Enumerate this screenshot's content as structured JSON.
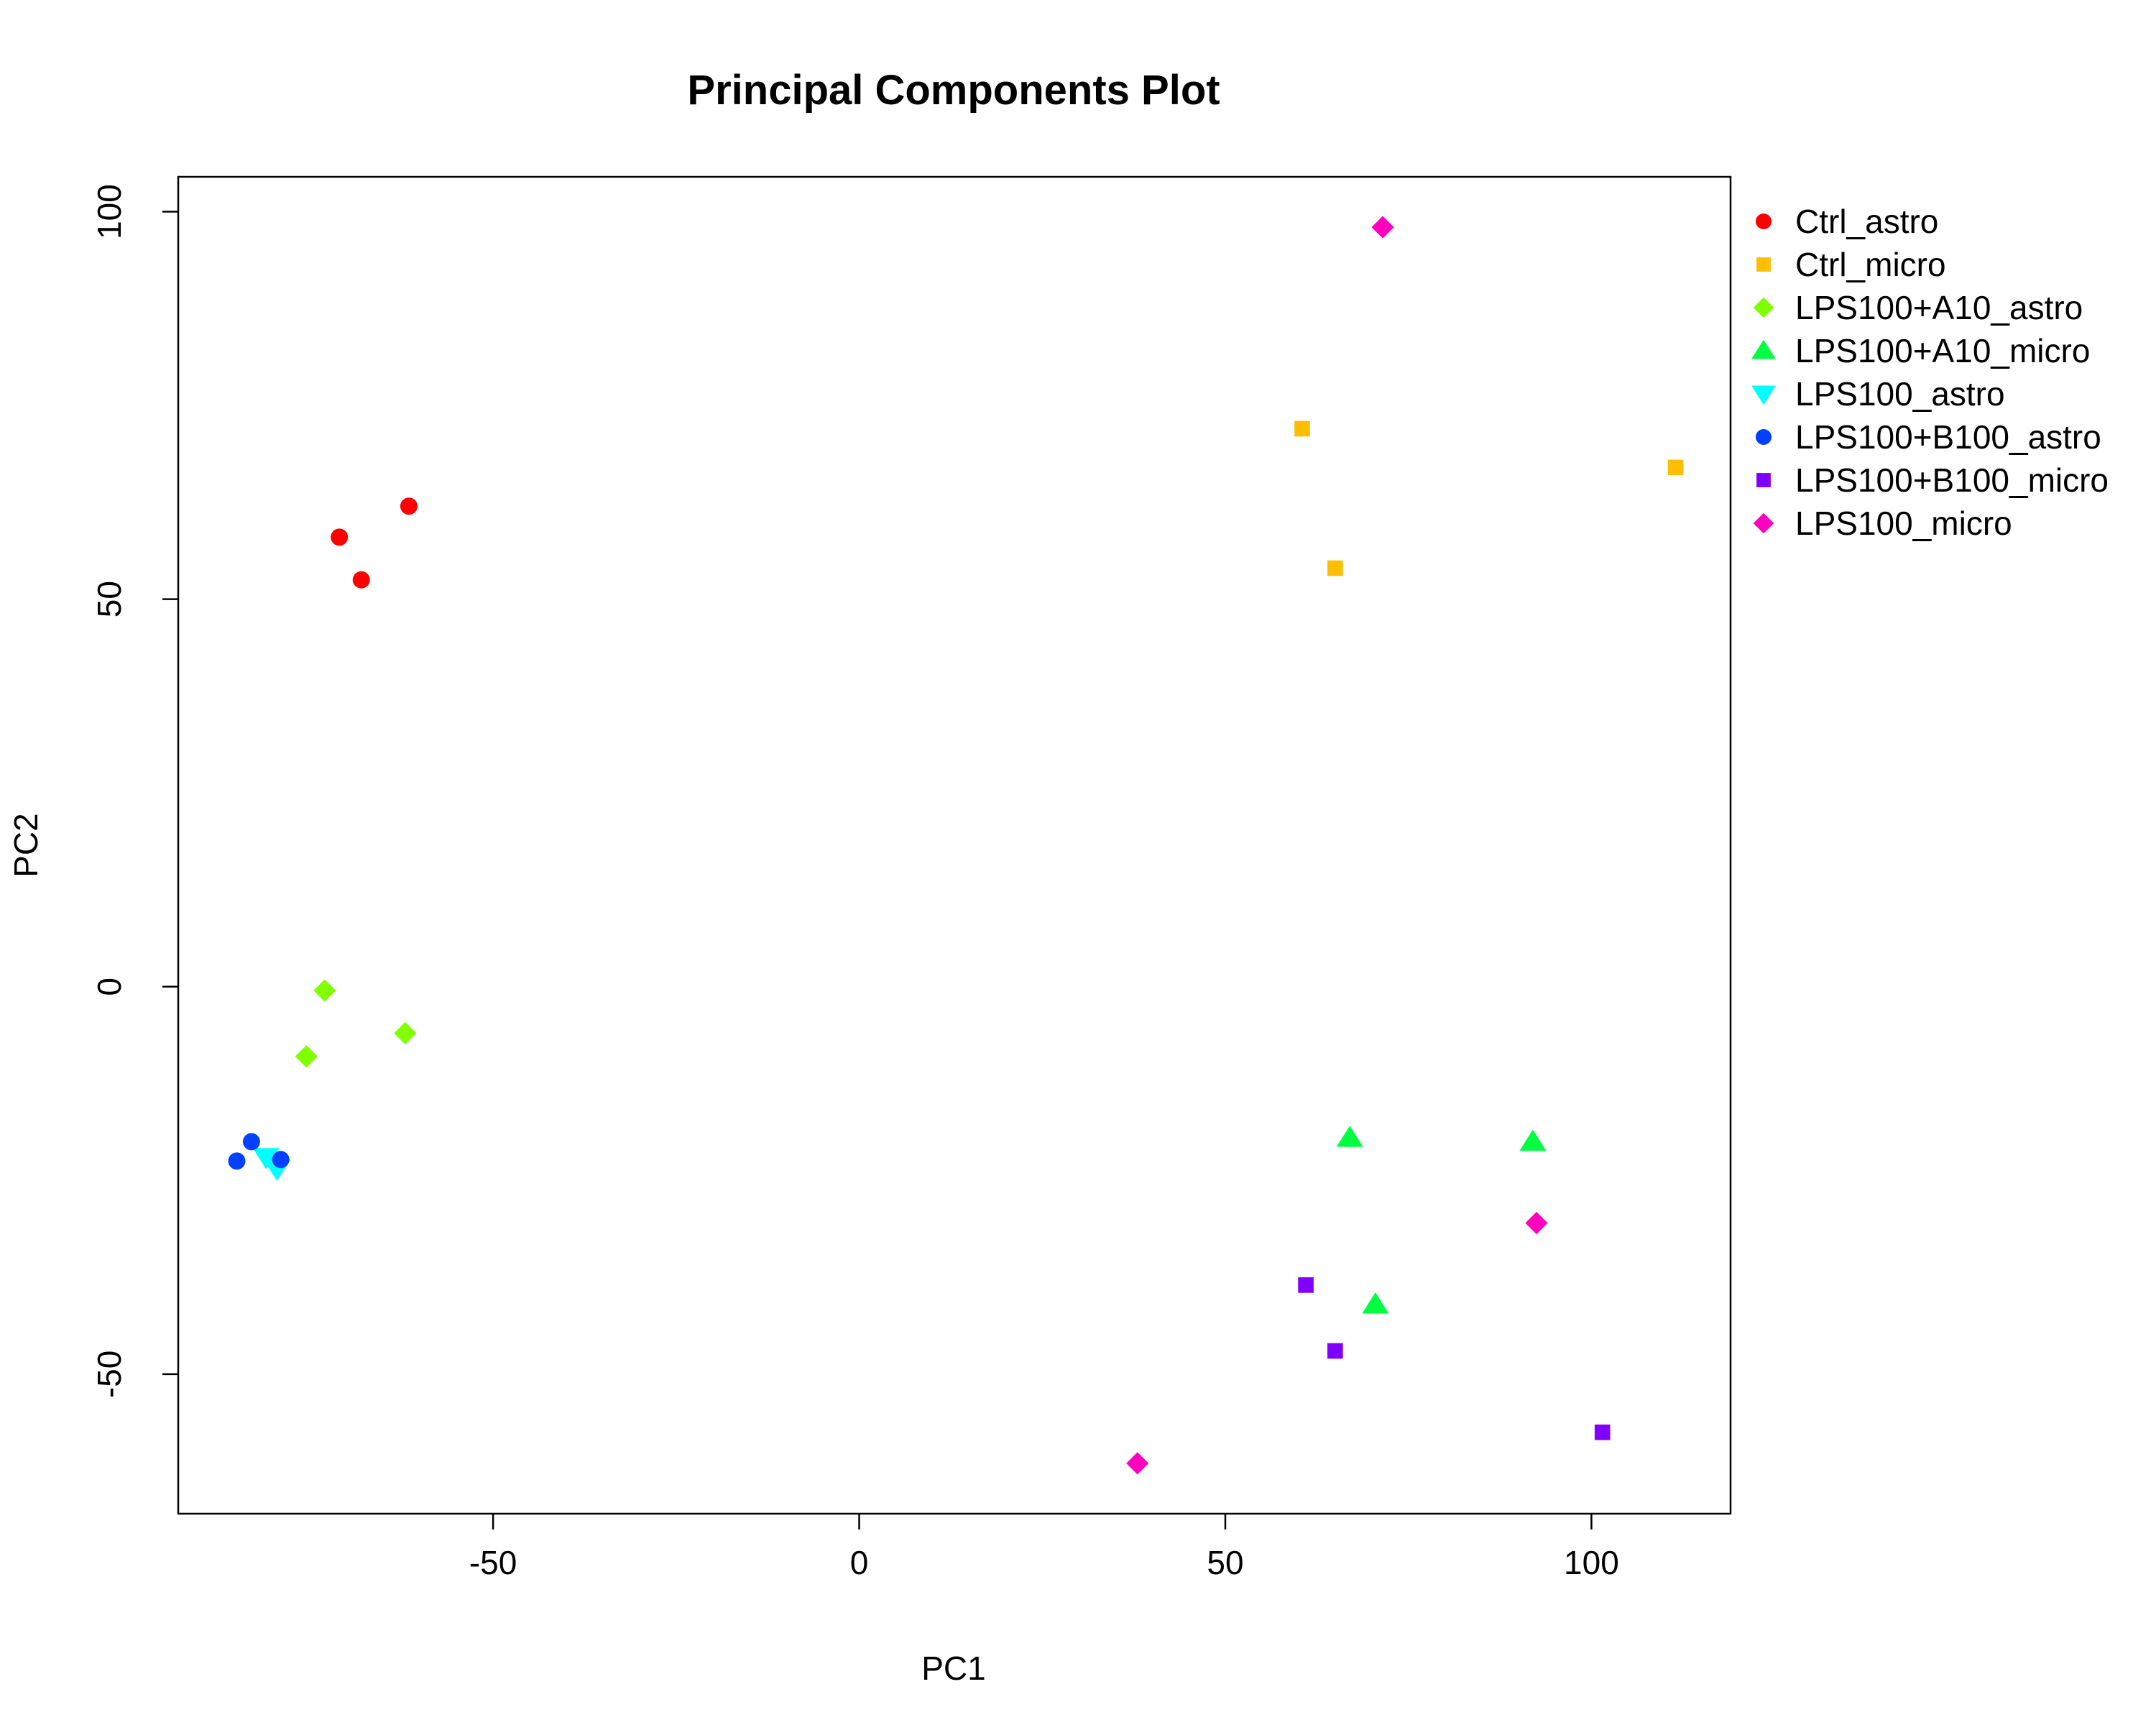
{
  "chart_data": {
    "type": "scatter",
    "title": "Principal Components Plot",
    "xlabel": "PC1",
    "ylabel": "PC2",
    "xlim": [
      -93,
      119
    ],
    "ylim": [
      -68,
      104.5
    ],
    "x_ticks": [
      -50,
      0,
      50,
      100
    ],
    "y_ticks": [
      -50,
      0,
      50,
      100
    ],
    "grid": false,
    "legend_position": "right, outside plot",
    "series": [
      {
        "name": "Ctrl_astro",
        "color": "#FF0000",
        "marker": "circle",
        "points": [
          [
            -71,
            58
          ],
          [
            -68,
            52.5
          ],
          [
            -61.5,
            62
          ]
        ]
      },
      {
        "name": "Ctrl_micro",
        "color": "#FFBF00",
        "marker": "square",
        "points": [
          [
            60.5,
            72
          ],
          [
            65,
            54
          ],
          [
            111.5,
            67
          ]
        ]
      },
      {
        "name": "LPS100+A10_astro",
        "color": "#80FF00",
        "marker": "diamond",
        "points": [
          [
            -73,
            -0.5
          ],
          [
            -75.5,
            -9
          ],
          [
            -62,
            -6
          ]
        ]
      },
      {
        "name": "LPS100+A10_micro",
        "color": "#00FF40",
        "marker": "triangle-up",
        "points": [
          [
            67,
            -19.5
          ],
          [
            92,
            -20
          ],
          [
            70.5,
            -41
          ]
        ]
      },
      {
        "name": "LPS100_astro",
        "color": "#00FFFF",
        "marker": "triangle-down",
        "points": [
          [
            -81,
            -22
          ],
          [
            -80,
            -22.8
          ],
          [
            -79.5,
            -23.5
          ]
        ]
      },
      {
        "name": "LPS100+B100_astro",
        "color": "#0040FF",
        "marker": "circle",
        "points": [
          [
            -85,
            -22.5
          ],
          [
            -83,
            -20
          ],
          [
            -79,
            -22.3
          ]
        ]
      },
      {
        "name": "LPS100+B100_micro",
        "color": "#8000FF",
        "marker": "square",
        "points": [
          [
            61,
            -38.5
          ],
          [
            65,
            -47
          ],
          [
            101.5,
            -57.5
          ]
        ]
      },
      {
        "name": "LPS100_micro",
        "color": "#FF00BF",
        "marker": "diamond",
        "points": [
          [
            71.5,
            98
          ],
          [
            92.5,
            -30.5
          ],
          [
            38,
            -61.5
          ]
        ]
      }
    ]
  }
}
